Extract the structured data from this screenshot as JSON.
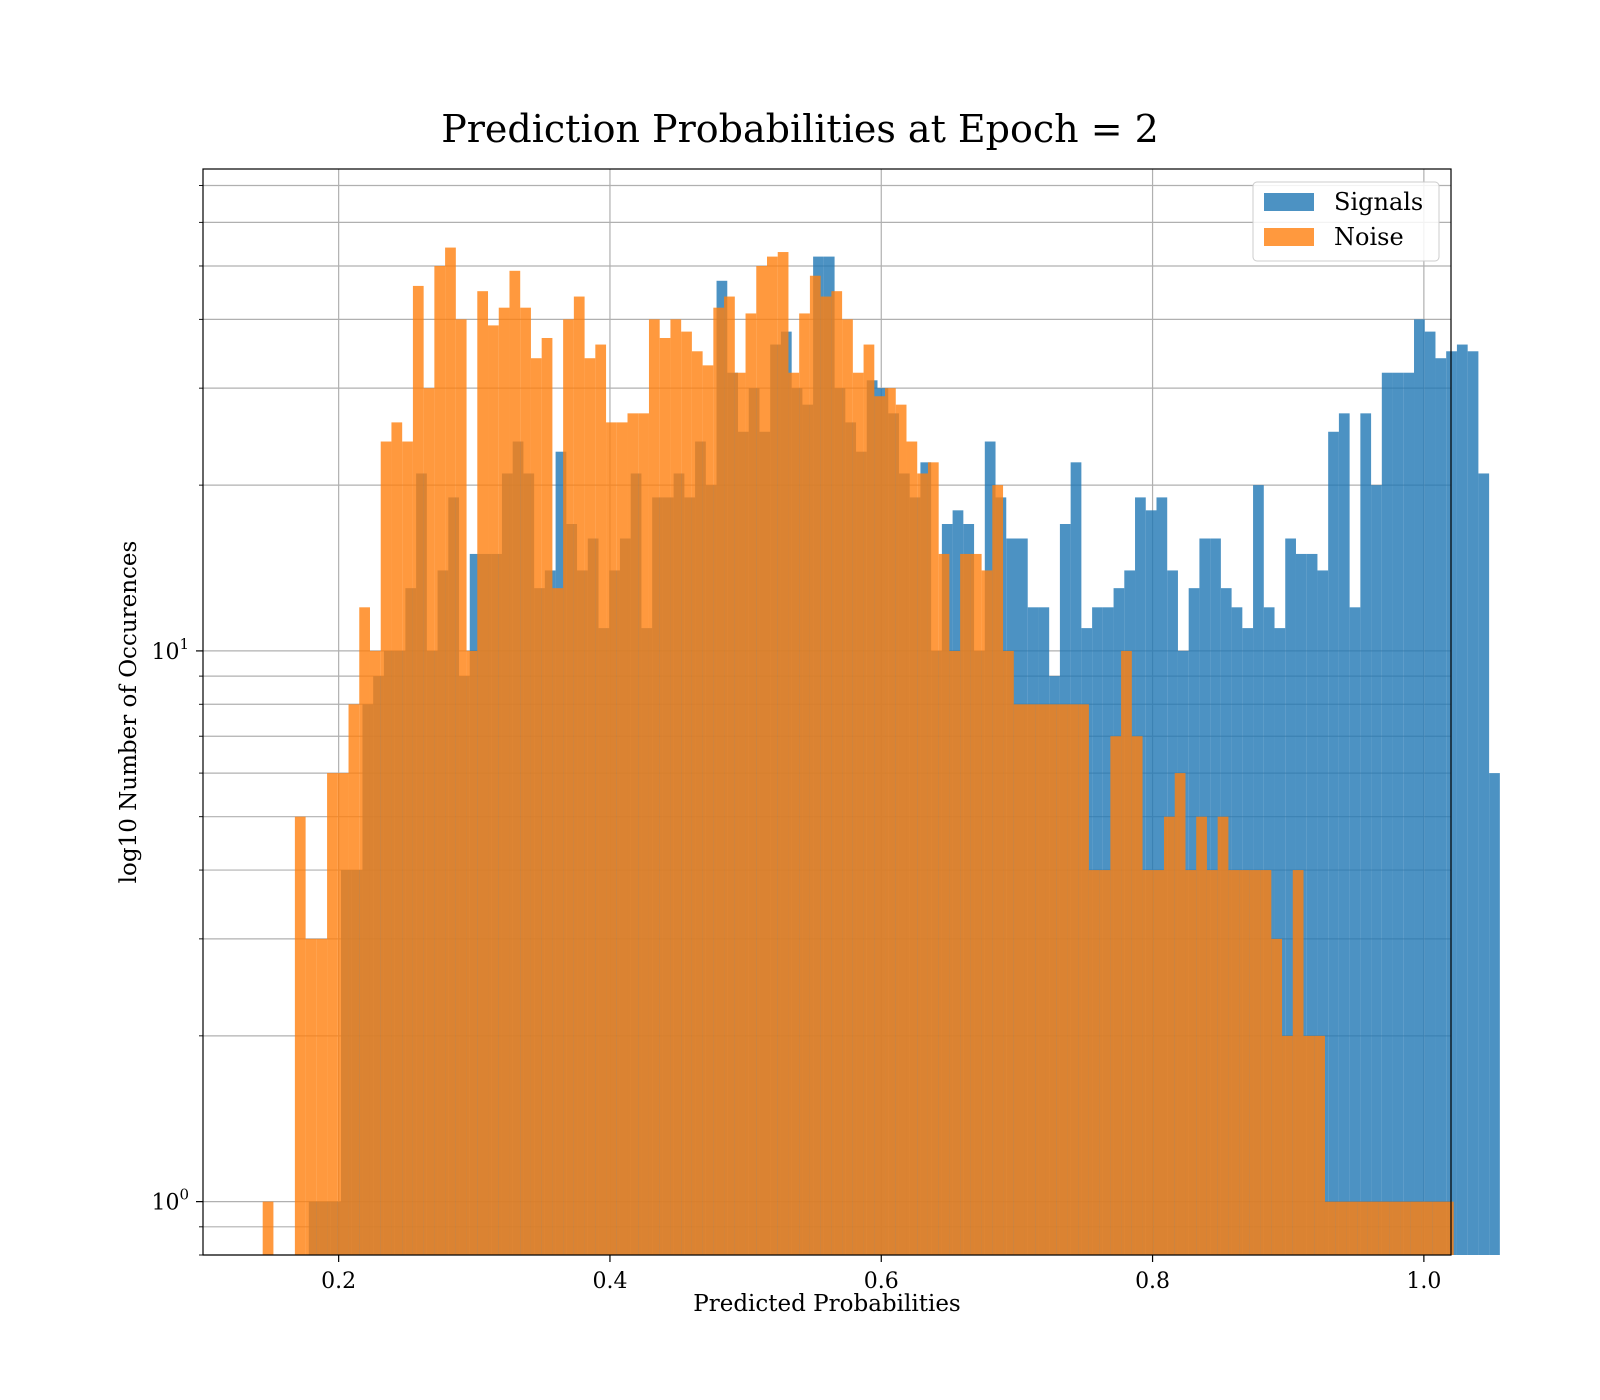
{
  "chart_data": {
    "type": "bar",
    "title": "Prediction Probabilities at Epoch = 2",
    "xlabel": "Predicted Probabilities",
    "ylabel": "log10 Number of Occurences",
    "xlim": [
      0.1,
      1.02
    ],
    "ylim": [
      0.8,
      75
    ],
    "yscale": "log",
    "grid": true,
    "legend_position": "top-right",
    "x_ticks": [
      "0.2",
      "0.4",
      "0.6",
      "0.8",
      "1.0"
    ],
    "x_tick_values": [
      0.2,
      0.4,
      0.6,
      0.8,
      1.0
    ],
    "y_ticks": [
      {
        "value": 1,
        "base": "10",
        "exp": "0"
      },
      {
        "value": 10,
        "base": "10",
        "exp": "1"
      }
    ],
    "series": [
      {
        "name": "Signals",
        "color": "#1f77b4",
        "bin_width": 0.00791,
        "start": 0.178,
        "values": [
          1,
          1,
          1,
          4,
          4,
          8,
          9,
          10,
          10,
          13,
          21,
          10,
          14,
          19,
          9,
          15,
          15,
          15,
          21,
          24,
          21,
          13,
          14,
          23,
          17,
          14,
          16,
          11,
          14,
          16,
          21,
          11,
          19,
          19,
          21,
          19,
          24,
          20,
          47,
          32,
          25,
          30,
          25,
          36,
          38,
          30,
          28,
          52,
          52,
          30,
          26,
          23,
          31,
          30,
          27,
          21,
          19,
          22,
          10,
          17,
          18,
          17,
          10,
          24,
          19,
          16,
          16,
          12,
          12,
          9,
          17,
          22,
          11,
          12,
          12,
          13,
          14,
          19,
          18,
          19,
          14,
          10,
          13,
          16,
          16,
          13,
          12,
          11,
          20,
          12,
          11,
          16,
          15,
          15,
          14,
          25,
          27,
          12,
          27,
          20,
          32,
          32,
          32,
          40,
          38,
          34,
          35,
          36,
          35,
          21,
          6,
          null
        ],
        "_note_ignore": ""
      },
      {
        "name": "Noise",
        "color": "#ff7f0e",
        "bin_width": 0.00791,
        "start": 0.144,
        "values": [
          1,
          0,
          0,
          5,
          3,
          3,
          6,
          6,
          8,
          12,
          10,
          24,
          26,
          24,
          46,
          30,
          50,
          54,
          40,
          10,
          45,
          39,
          42,
          49,
          42,
          34,
          37,
          13,
          40,
          44,
          34,
          36,
          26,
          26,
          27,
          27,
          40,
          37,
          40,
          38,
          35,
          33,
          42,
          44,
          32,
          41,
          50,
          52,
          53,
          32,
          41,
          48,
          44,
          45,
          40,
          32,
          36,
          29,
          30,
          28,
          24,
          21,
          22,
          15,
          10,
          15,
          15,
          14,
          20,
          10,
          8,
          8,
          8,
          8,
          8,
          8,
          8,
          4,
          4,
          7,
          10,
          7,
          4,
          4,
          5,
          6,
          4,
          5,
          4,
          5,
          4,
          4,
          4,
          4,
          3,
          2,
          4,
          2,
          2,
          1,
          1,
          1,
          1,
          1,
          1,
          1,
          1,
          1,
          1,
          1,
          1
        ],
        "_note_ignore": ""
      }
    ]
  },
  "legend": {
    "items": [
      {
        "label": "Signals",
        "color": "#1f77b4"
      },
      {
        "label": "Noise",
        "color": "#ff7f0e"
      }
    ]
  }
}
